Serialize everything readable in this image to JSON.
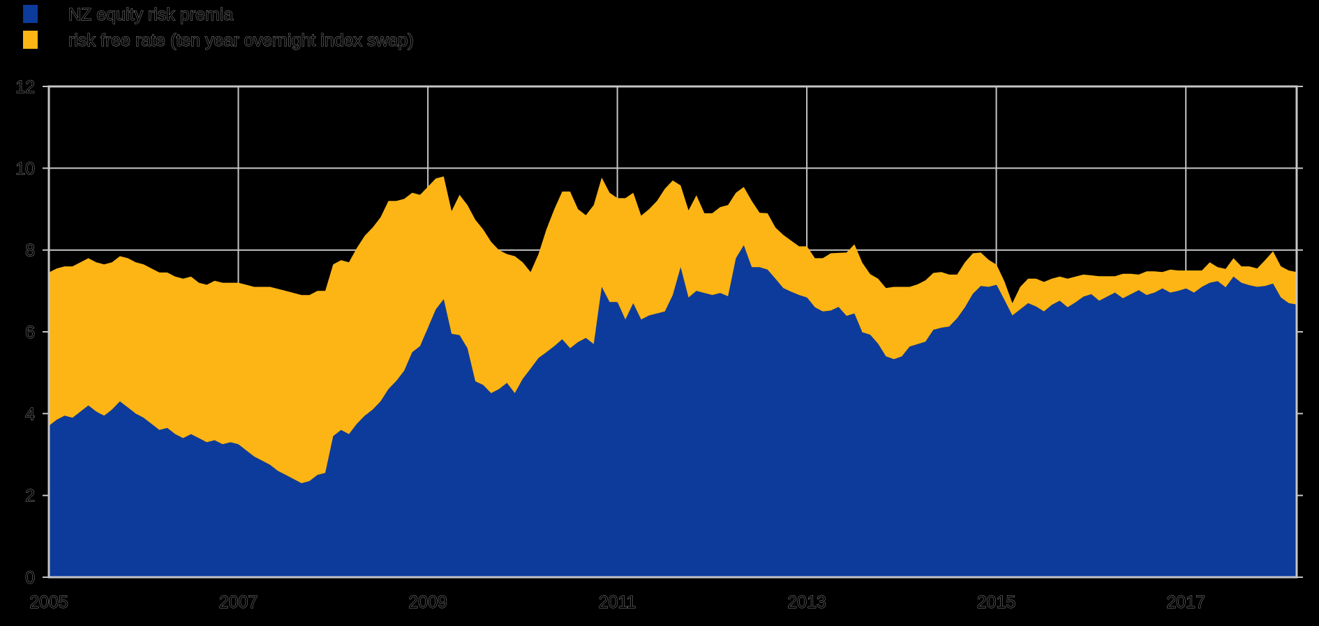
{
  "app": {
    "background": "#000000"
  },
  "legend": {
    "position": "top-left",
    "items": [
      {
        "label": "NZ equity risk premia",
        "color": "#0c3b9c"
      },
      {
        "label": "risk free rate (ten year overnight index swap)",
        "color": "#fdb515"
      }
    ]
  },
  "axes": {
    "y_tick_labels": [
      "12",
      "10",
      "8",
      "6",
      "4",
      "2",
      "0"
    ],
    "y_tick_values": [
      12,
      10,
      8,
      6,
      4,
      2,
      0
    ],
    "x_tick_labels": [
      "2005",
      "2007",
      "2009",
      "2011",
      "2013",
      "2015",
      "2017"
    ],
    "x_tick_values": [
      2005,
      2007,
      2009,
      2011,
      2013,
      2015,
      2017
    ],
    "grid_color": "#c6c6c6",
    "label_fill": "#000000",
    "label_stroke": "#8f8f8f"
  },
  "chart_data": {
    "type": "area",
    "stacked": true,
    "frequency": "monthly",
    "x_start": "2005-01",
    "x_end": "2018-03",
    "x_range_years": [
      2005.0,
      2018.17
    ],
    "ylim": [
      0,
      12
    ],
    "grid": true,
    "legend_position": "top-left",
    "series": [
      {
        "name": "NZ equity risk premia",
        "color": "#0c3b9c",
        "values": [
          3.7,
          3.85,
          3.95,
          3.9,
          4.05,
          4.2,
          4.05,
          3.95,
          4.1,
          4.3,
          4.15,
          4.0,
          3.9,
          3.75,
          3.6,
          3.65,
          3.5,
          3.4,
          3.5,
          3.4,
          3.3,
          3.35,
          3.25,
          3.3,
          3.25,
          3.1,
          2.95,
          2.85,
          2.75,
          2.6,
          2.5,
          2.4,
          2.3,
          2.35,
          2.5,
          2.55,
          3.45,
          3.6,
          3.5,
          3.75,
          3.95,
          4.1,
          4.3,
          4.6,
          4.8,
          5.05,
          5.5,
          5.65,
          6.1,
          6.55,
          6.8,
          5.95,
          5.92,
          5.6,
          4.79,
          4.7,
          4.5,
          4.6,
          4.75,
          4.5,
          4.85,
          5.1,
          5.36,
          5.5,
          5.65,
          5.82,
          5.6,
          5.75,
          5.85,
          5.7,
          7.1,
          6.73,
          6.73,
          6.3,
          6.7,
          6.3,
          6.4,
          6.45,
          6.5,
          6.9,
          7.58,
          6.84,
          7.0,
          6.95,
          6.9,
          6.95,
          6.87,
          7.8,
          8.12,
          7.58,
          7.58,
          7.52,
          7.3,
          7.07,
          6.98,
          6.9,
          6.84,
          6.6,
          6.5,
          6.52,
          6.61,
          6.39,
          6.45,
          5.99,
          5.93,
          5.71,
          5.4,
          5.33,
          5.4,
          5.64,
          5.7,
          5.76,
          6.05,
          6.1,
          6.13,
          6.33,
          6.6,
          6.93,
          7.12,
          7.1,
          7.15,
          6.78,
          6.4,
          6.55,
          6.7,
          6.62,
          6.5,
          6.66,
          6.76,
          6.6,
          6.72,
          6.86,
          6.92,
          6.76,
          6.86,
          6.96,
          6.82,
          6.92,
          7.02,
          6.9,
          6.96,
          7.06,
          6.96,
          7.0,
          7.06,
          6.96,
          7.1,
          7.2,
          7.24,
          7.09,
          7.35,
          7.2,
          7.14,
          7.1,
          7.12,
          7.18,
          6.84,
          6.7,
          6.67
        ]
      },
      {
        "name": "risk free rate (ten year overnight index swap)",
        "color": "#fdb515",
        "values": [
          3.75,
          3.7,
          3.65,
          3.7,
          3.65,
          3.6,
          3.65,
          3.7,
          3.6,
          3.55,
          3.65,
          3.7,
          3.75,
          3.8,
          3.85,
          3.8,
          3.85,
          3.9,
          3.85,
          3.8,
          3.85,
          3.9,
          3.95,
          3.9,
          3.95,
          4.05,
          4.15,
          4.25,
          4.35,
          4.45,
          4.5,
          4.55,
          4.6,
          4.55,
          4.5,
          4.45,
          4.2,
          4.15,
          4.2,
          4.3,
          4.4,
          4.45,
          4.5,
          4.6,
          4.4,
          4.2,
          3.9,
          3.7,
          3.45,
          3.2,
          3.0,
          3.0,
          3.43,
          3.5,
          3.95,
          3.8,
          3.7,
          3.4,
          3.15,
          3.35,
          2.85,
          2.36,
          2.54,
          3.0,
          3.35,
          3.61,
          3.83,
          3.25,
          3.0,
          3.4,
          2.67,
          2.67,
          2.54,
          2.97,
          2.7,
          2.54,
          2.6,
          2.75,
          3.0,
          2.8,
          2.0,
          2.13,
          2.34,
          1.95,
          2.0,
          2.1,
          2.23,
          1.6,
          1.42,
          1.62,
          1.33,
          1.38,
          1.25,
          1.3,
          1.25,
          1.19,
          1.25,
          1.2,
          1.3,
          1.4,
          1.32,
          1.55,
          1.69,
          1.7,
          1.48,
          1.59,
          1.67,
          1.77,
          1.7,
          1.46,
          1.46,
          1.5,
          1.39,
          1.36,
          1.27,
          1.07,
          1.1,
          0.99,
          0.82,
          0.66,
          0.49,
          0.45,
          0.3,
          0.55,
          0.6,
          0.68,
          0.72,
          0.64,
          0.59,
          0.7,
          0.63,
          0.54,
          0.46,
          0.6,
          0.5,
          0.4,
          0.6,
          0.5,
          0.38,
          0.58,
          0.52,
          0.4,
          0.56,
          0.5,
          0.44,
          0.54,
          0.4,
          0.5,
          0.34,
          0.45,
          0.45,
          0.4,
          0.46,
          0.45,
          0.63,
          0.79,
          0.76,
          0.8,
          0.79
        ]
      }
    ]
  }
}
